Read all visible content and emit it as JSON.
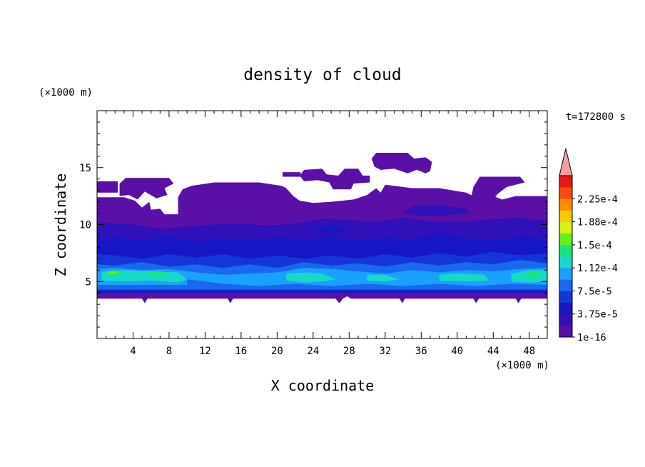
{
  "chart_data": {
    "type": "heatmap",
    "title": "density of cloud",
    "xlabel": "X coordinate",
    "ylabel": "Z coordinate",
    "x_unit_label": "(×1000 m)",
    "y_unit_label": "(×1000 m)",
    "time_label": "t=172800 s",
    "xlim": [
      0,
      50
    ],
    "ylim": [
      0,
      20
    ],
    "x_ticks": [
      4,
      8,
      12,
      16,
      20,
      24,
      28,
      32,
      36,
      40,
      44,
      48
    ],
    "y_ticks": [
      5,
      10,
      15
    ],
    "colorbar": {
      "levels": [
        1e-16,
        1.875e-05,
        3.75e-05,
        5.625e-05,
        7.5e-05,
        9.375e-05,
        0.000112,
        0.000131,
        0.00015,
        0.000169,
        0.000188,
        0.000206,
        0.000225,
        0.000244
      ],
      "tick_labels": [
        "1e-16",
        "3.75e-5",
        "7.5e-5",
        "1.12e-4",
        "1.5e-4",
        "1.88e-4",
        "2.25e-4"
      ],
      "colors": [
        "#5a0fa6",
        "#3010b8",
        "#1616c4",
        "#1535d8",
        "#1a68ee",
        "#1aa0ff",
        "#18d8c8",
        "#18e67c",
        "#66ee18",
        "#d8f014",
        "#ffc800",
        "#ff8c00",
        "#ff4a10",
        "#e81818"
      ],
      "extend_color": "#f5a0a0"
    },
    "regions": [
      {
        "level": 0,
        "xz": [
          [
            0,
            3.5
          ],
          [
            5,
            3.5
          ],
          [
            5.3,
            3.1
          ],
          [
            5.6,
            3.5
          ],
          [
            14.5,
            3.5
          ],
          [
            14.8,
            3.1
          ],
          [
            15.1,
            3.5
          ],
          [
            26.5,
            3.5
          ],
          [
            26.9,
            3.1
          ],
          [
            27.3,
            3.5
          ],
          [
            27.8,
            3.7
          ],
          [
            28.2,
            3.5
          ],
          [
            33.6,
            3.5
          ],
          [
            33.9,
            3.1
          ],
          [
            34.2,
            3.5
          ],
          [
            41.8,
            3.5
          ],
          [
            42.1,
            3.1
          ],
          [
            42.4,
            3.5
          ],
          [
            46.5,
            3.5
          ],
          [
            46.8,
            3.1
          ],
          [
            47.1,
            3.5
          ],
          [
            50,
            3.5
          ],
          [
            50,
            12.5
          ],
          [
            46.5,
            12.5
          ],
          [
            45,
            12.2
          ],
          [
            43,
            12.8
          ],
          [
            42.5,
            12.2
          ],
          [
            41,
            12.8
          ],
          [
            38,
            13.2
          ],
          [
            35,
            13.2
          ],
          [
            33,
            13.4
          ],
          [
            32,
            13.5
          ],
          [
            31.5,
            12.8
          ],
          [
            31,
            13.2
          ],
          [
            30,
            12.6
          ],
          [
            28.5,
            12.2
          ],
          [
            26,
            12
          ],
          [
            24,
            11.9
          ],
          [
            22.5,
            12.1
          ],
          [
            21.8,
            12.5
          ],
          [
            21,
            13.2
          ],
          [
            20.5,
            13.4
          ],
          [
            18,
            13.7
          ],
          [
            16,
            13.7
          ],
          [
            13,
            13.7
          ],
          [
            10.5,
            13.4
          ],
          [
            9.5,
            13.1
          ],
          [
            9,
            12.4
          ],
          [
            9,
            10.9
          ],
          [
            7.5,
            10.9
          ],
          [
            7,
            11.4
          ],
          [
            6,
            11.3
          ],
          [
            5.8,
            12
          ],
          [
            5,
            11.5
          ],
          [
            4.2,
            12.1
          ],
          [
            3,
            12.4
          ],
          [
            0,
            12.4
          ]
        ]
      },
      {
        "level": 0,
        "xz": [
          [
            2.5,
            12.5
          ],
          [
            2.5,
            13.6
          ],
          [
            3.2,
            14.1
          ],
          [
            8,
            14.1
          ],
          [
            8.5,
            13.6
          ],
          [
            7.5,
            13.2
          ],
          [
            7.8,
            12.6
          ],
          [
            6.6,
            12.3
          ],
          [
            5.3,
            12.9
          ],
          [
            4.5,
            12.2
          ],
          [
            3.5,
            12.6
          ]
        ]
      },
      {
        "level": 0,
        "xz": [
          [
            0,
            12.8
          ],
          [
            0,
            13.8
          ],
          [
            2.3,
            13.8
          ],
          [
            2.3,
            12.8
          ]
        ]
      },
      {
        "level": 0,
        "xz": [
          [
            33.5,
            11.3
          ],
          [
            34.5,
            11.2
          ],
          [
            36,
            11
          ],
          [
            38,
            11.2
          ],
          [
            40.5,
            11.5
          ],
          [
            41.5,
            12.2
          ],
          [
            41.8,
            13.3
          ],
          [
            42.5,
            14.2
          ],
          [
            47,
            14.2
          ],
          [
            47.5,
            13.7
          ],
          [
            45.5,
            13.3
          ],
          [
            44.5,
            12.7
          ],
          [
            44,
            12.2
          ],
          [
            42.5,
            12
          ],
          [
            41,
            11
          ],
          [
            38.5,
            10.8
          ],
          [
            36,
            10.7
          ],
          [
            34,
            10.8
          ]
        ]
      },
      {
        "level": 0,
        "xz": [
          [
            22.5,
            14.3
          ],
          [
            23,
            14.8
          ],
          [
            25,
            14.9
          ],
          [
            25.5,
            14.4
          ],
          [
            26.8,
            14.3
          ],
          [
            27.5,
            14.9
          ],
          [
            29,
            14.9
          ],
          [
            29.5,
            14.3
          ],
          [
            30.3,
            14.3
          ],
          [
            30.3,
            13.7
          ],
          [
            28.5,
            13.6
          ],
          [
            28.2,
            13.1
          ],
          [
            26.2,
            13.1
          ],
          [
            25.8,
            13.7
          ],
          [
            24.5,
            13.9
          ],
          [
            23,
            13.8
          ]
        ]
      },
      {
        "level": 0,
        "xz": [
          [
            20.6,
            14.2
          ],
          [
            20.6,
            14.6
          ],
          [
            22.6,
            14.6
          ],
          [
            22.6,
            14.2
          ]
        ]
      },
      {
        "level": 0,
        "xz": [
          [
            30.5,
            15.8
          ],
          [
            31,
            16.3
          ],
          [
            34.5,
            16.3
          ],
          [
            35.2,
            15.8
          ],
          [
            36.5,
            15.9
          ],
          [
            37.2,
            15.5
          ],
          [
            37,
            14.7
          ],
          [
            36.5,
            14.5
          ],
          [
            35.5,
            14.8
          ],
          [
            34.5,
            14.5
          ],
          [
            33,
            14.9
          ],
          [
            31.5,
            14.8
          ],
          [
            30.8,
            15.1
          ]
        ]
      },
      {
        "level": 1,
        "xz": [
          [
            0,
            4
          ],
          [
            50,
            4
          ],
          [
            50,
            10.3
          ],
          [
            46.5,
            10.6
          ],
          [
            43,
            10.4
          ],
          [
            40,
            10.2
          ],
          [
            37,
            10.3
          ],
          [
            34,
            10.6
          ],
          [
            31,
            10.2
          ],
          [
            28,
            10.4
          ],
          [
            25,
            10.5
          ],
          [
            22,
            10.1
          ],
          [
            19,
            9.9
          ],
          [
            16,
            10.1
          ],
          [
            13,
            10
          ],
          [
            10,
            9.8
          ],
          [
            7,
            9.6
          ],
          [
            4,
            10
          ],
          [
            0,
            10.2
          ]
        ]
      },
      {
        "level": 1,
        "xz": [
          [
            34,
            11
          ],
          [
            35,
            11.6
          ],
          [
            38,
            11.7
          ],
          [
            41,
            11.4
          ],
          [
            41.5,
            11
          ],
          [
            38.5,
            10.8
          ],
          [
            36,
            10.8
          ]
        ]
      },
      {
        "level": 2,
        "xz": [
          [
            0,
            4
          ],
          [
            50,
            4
          ],
          [
            50,
            8.7
          ],
          [
            47,
            9
          ],
          [
            44,
            8.6
          ],
          [
            41,
            8.8
          ],
          [
            38,
            9.2
          ],
          [
            35,
            8.7
          ],
          [
            32,
            8.9
          ],
          [
            29,
            8.6
          ],
          [
            26,
            9
          ],
          [
            23,
            8.7
          ],
          [
            20,
            8.9
          ],
          [
            17,
            8.6
          ],
          [
            14,
            8.8
          ],
          [
            11,
            8.5
          ],
          [
            8,
            9
          ],
          [
            5,
            8.6
          ],
          [
            2,
            8.9
          ],
          [
            0,
            8.7
          ]
        ]
      },
      {
        "level": 2,
        "xz": [
          [
            24,
            9.6
          ],
          [
            26,
            9.9
          ],
          [
            28,
            9.6
          ],
          [
            27,
            9.3
          ],
          [
            25,
            9.3
          ]
        ]
      },
      {
        "level": 3,
        "xz": [
          [
            0,
            4.2
          ],
          [
            50,
            4.2
          ],
          [
            50,
            7.5
          ],
          [
            47,
            7.3
          ],
          [
            44,
            7.6
          ],
          [
            41,
            7.2
          ],
          [
            38,
            7.5
          ],
          [
            35,
            7.1
          ],
          [
            32,
            7.4
          ],
          [
            29,
            7
          ],
          [
            26,
            7.3
          ],
          [
            23,
            7
          ],
          [
            20,
            7.3
          ],
          [
            17,
            7
          ],
          [
            14,
            7.4
          ],
          [
            11,
            7.1
          ],
          [
            8,
            7.4
          ],
          [
            5,
            7
          ],
          [
            2,
            7.3
          ],
          [
            0,
            7.4
          ]
        ]
      },
      {
        "level": 4,
        "xz": [
          [
            0,
            4.3
          ],
          [
            50,
            4.3
          ],
          [
            50,
            6.6
          ],
          [
            47,
            6.9
          ],
          [
            44,
            6.5
          ],
          [
            41,
            6.7
          ],
          [
            38,
            6.4
          ],
          [
            35,
            6.7
          ],
          [
            32,
            6.3
          ],
          [
            29,
            6.6
          ],
          [
            26,
            6.4
          ],
          [
            23,
            6.7
          ],
          [
            20,
            6.2
          ],
          [
            17,
            6.5
          ],
          [
            14,
            6.2
          ],
          [
            11,
            6.5
          ],
          [
            8,
            6.3
          ],
          [
            5,
            6.7
          ],
          [
            2,
            6.4
          ],
          [
            0,
            6.5
          ]
        ]
      },
      {
        "level": 5,
        "xz": [
          [
            0,
            4.7
          ],
          [
            10,
            4.7
          ],
          [
            10,
            5.2
          ],
          [
            14,
            4.8
          ],
          [
            18,
            4.6
          ],
          [
            22,
            4.8
          ],
          [
            26,
            4.6
          ],
          [
            30,
            4.8
          ],
          [
            34,
            4.6
          ],
          [
            38,
            4.8
          ],
          [
            42,
            4.6
          ],
          [
            46,
            4.8
          ],
          [
            50,
            4.7
          ],
          [
            50,
            6.2
          ],
          [
            47,
            6.1
          ],
          [
            44,
            5.9
          ],
          [
            41,
            6
          ],
          [
            38,
            5.8
          ],
          [
            35,
            6
          ],
          [
            32,
            5.7
          ],
          [
            29,
            5.9
          ],
          [
            26,
            6.1
          ],
          [
            23,
            6.2
          ],
          [
            20,
            5.8
          ],
          [
            17,
            5.7
          ],
          [
            14,
            5.6
          ],
          [
            11,
            5.8
          ],
          [
            8,
            6.1
          ],
          [
            5,
            6
          ],
          [
            2,
            6.2
          ],
          [
            0,
            6.1
          ]
        ]
      },
      {
        "level": 6,
        "xz": [
          [
            0.5,
            5.1
          ],
          [
            3,
            5
          ],
          [
            6,
            5.1
          ],
          [
            9,
            4.9
          ],
          [
            10,
            5.2
          ],
          [
            9,
            5.8
          ],
          [
            6,
            5.9
          ],
          [
            3,
            6
          ],
          [
            0.5,
            5.8
          ]
        ]
      },
      {
        "level": 6,
        "xz": [
          [
            21,
            5.1
          ],
          [
            23,
            4.9
          ],
          [
            25,
            5
          ],
          [
            26.5,
            5.2
          ],
          [
            25,
            5.7
          ],
          [
            23,
            5.8
          ],
          [
            21,
            5.7
          ]
        ]
      },
      {
        "level": 6,
        "xz": [
          [
            30,
            5.1
          ],
          [
            32,
            5
          ],
          [
            33.5,
            5.2
          ],
          [
            32,
            5.6
          ],
          [
            30,
            5.6
          ]
        ]
      },
      {
        "level": 6,
        "xz": [
          [
            38,
            5.1
          ],
          [
            41,
            5
          ],
          [
            43.5,
            5.1
          ],
          [
            43,
            5.6
          ],
          [
            40,
            5.7
          ],
          [
            38,
            5.6
          ]
        ]
      },
      {
        "level": 6,
        "xz": [
          [
            46,
            5
          ],
          [
            48,
            4.9
          ],
          [
            50,
            5
          ],
          [
            50,
            6
          ],
          [
            48,
            6
          ],
          [
            46,
            5.7
          ]
        ]
      },
      {
        "level": 7,
        "xz": [
          [
            1,
            5.6
          ],
          [
            2.5,
            5.5
          ],
          [
            3,
            5.8
          ],
          [
            2,
            6
          ],
          [
            1,
            5.9
          ]
        ]
      },
      {
        "level": 7,
        "xz": [
          [
            5.5,
            5.5
          ],
          [
            7,
            5.4
          ],
          [
            7.8,
            5.6
          ],
          [
            7,
            5.9
          ],
          [
            5.6,
            5.8
          ]
        ]
      },
      {
        "level": 7,
        "xz": [
          [
            47.5,
            5.4
          ],
          [
            48.8,
            5.3
          ],
          [
            49.4,
            5.7
          ],
          [
            48.5,
            5.9
          ],
          [
            47.6,
            5.7
          ]
        ]
      },
      {
        "level": 8,
        "xz": [
          [
            1.3,
            5.7
          ],
          [
            2,
            5.65
          ],
          [
            2.4,
            5.8
          ],
          [
            1.8,
            5.9
          ],
          [
            1.3,
            5.85
          ]
        ]
      }
    ]
  }
}
